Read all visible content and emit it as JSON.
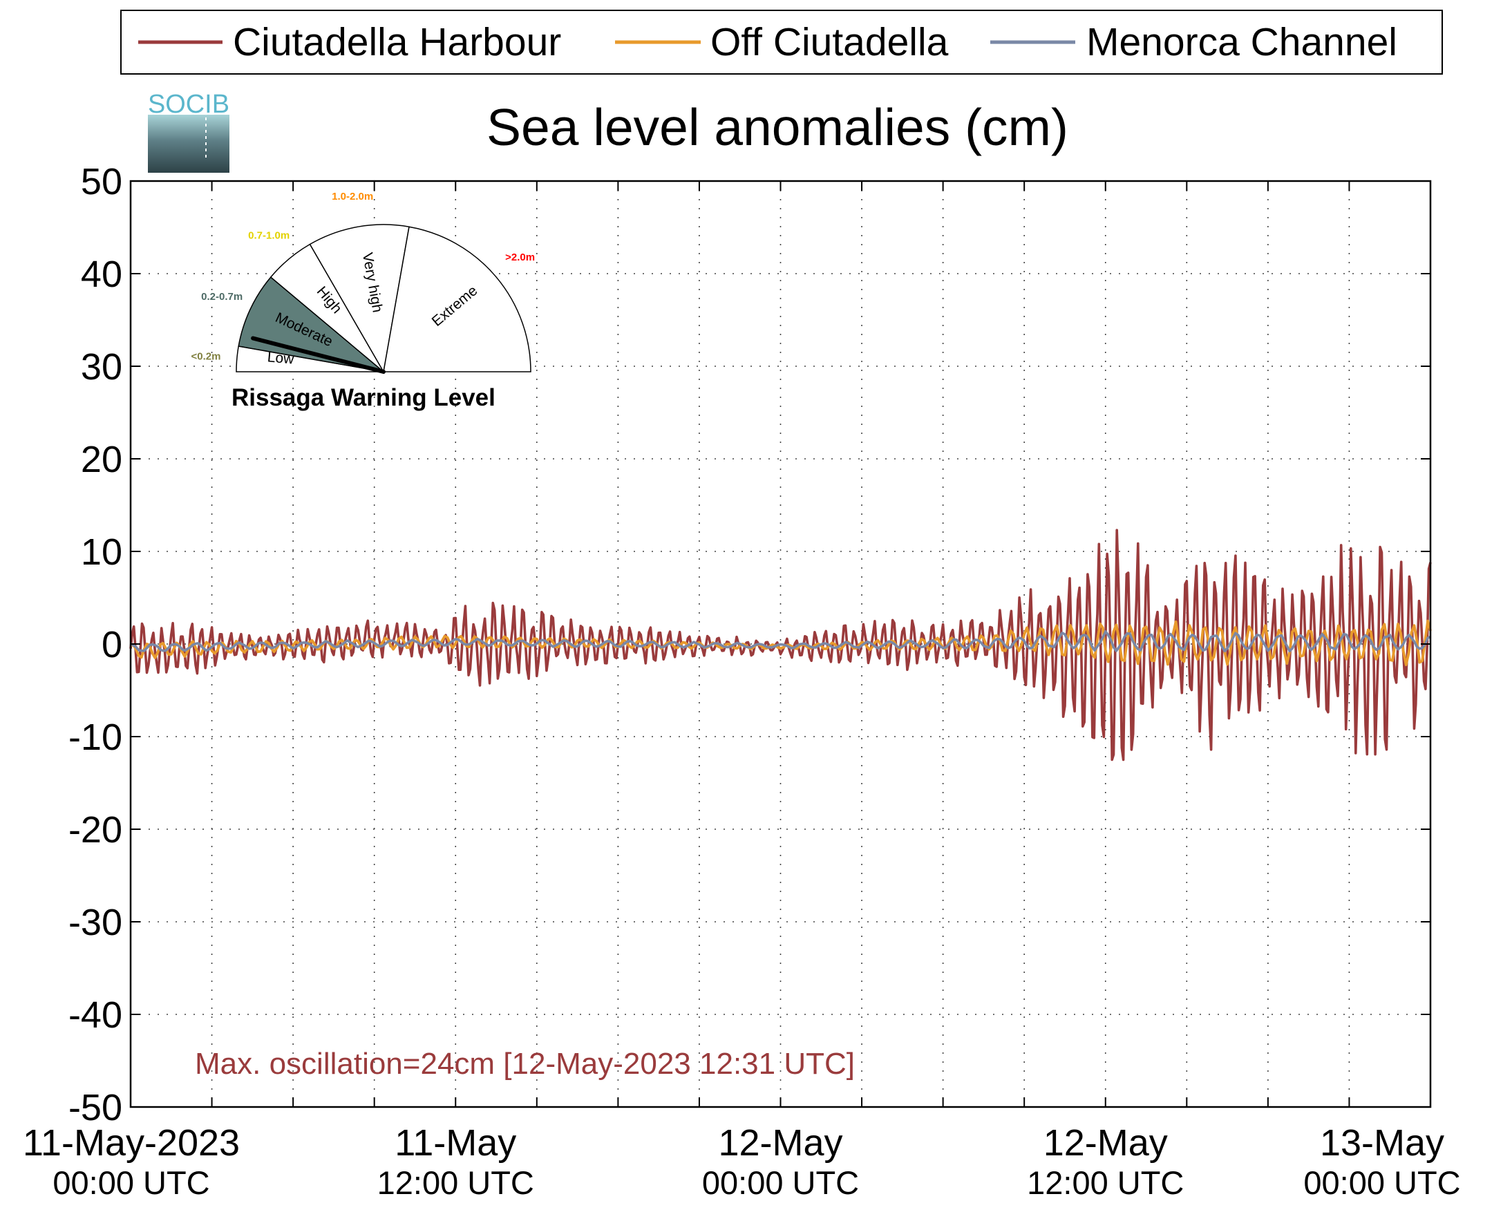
{
  "chart_data": {
    "type": "line",
    "title": "Sea level anomalies (cm)",
    "xlabel": "",
    "ylabel": "",
    "ylim": [
      -50,
      50
    ],
    "yticks": [
      50,
      40,
      30,
      20,
      10,
      0,
      -10,
      -20,
      -30,
      -40,
      -50
    ],
    "xlim_hours": [
      0,
      48
    ],
    "xticks": [
      {
        "hours": 0,
        "line1": "11-May-2023",
        "line2": "00:00 UTC"
      },
      {
        "hours": 12,
        "line1": "11-May",
        "line2": "12:00 UTC"
      },
      {
        "hours": 24,
        "line1": "12-May",
        "line2": "00:00 UTC"
      },
      {
        "hours": 36,
        "line1": "12-May",
        "line2": "12:00 UTC"
      },
      {
        "hours": 48,
        "line1": "13-May",
        "line2": "00:00 UTC"
      }
    ],
    "grid": true,
    "legend_position": "top",
    "series": [
      {
        "name": "Ciutadella Harbour",
        "color": "#9a3b3c",
        "hours": [
          0,
          1,
          2,
          3,
          4,
          5,
          6,
          7,
          8,
          9,
          10,
          11,
          11.5,
          12,
          13,
          14,
          15,
          16,
          17,
          18,
          19,
          20,
          21,
          22,
          23,
          24,
          25,
          26,
          27,
          28,
          29,
          30,
          31,
          32,
          33,
          34,
          34.5,
          35,
          35.5,
          36,
          36.3,
          36.5,
          37,
          37.5,
          38,
          38.5,
          39,
          39.5,
          40,
          40.5,
          41,
          41.5,
          42,
          42.5,
          43,
          43.5,
          44,
          44.5,
          45,
          45.5,
          46,
          46.5,
          47,
          47.5,
          48
        ],
        "amplitude_cm": [
          2.5,
          2,
          2.5,
          2,
          1.2,
          1,
          1.2,
          1.5,
          1.5,
          1.6,
          1.5,
          1.2,
          1.5,
          3.2,
          3.5,
          3.2,
          3,
          2.2,
          1.8,
          1.8,
          1.5,
          1.2,
          0.9,
          0.8,
          0.8,
          0.6,
          1.2,
          1.5,
          1.8,
          2,
          2.2,
          2.2,
          1.8,
          2.5,
          4,
          5.5,
          6.5,
          7,
          7.5,
          9,
          12,
          11,
          9,
          7,
          5,
          4,
          6,
          7.5,
          9,
          8,
          7,
          6,
          5.5,
          5,
          5,
          6,
          7.5,
          8.5,
          9,
          10,
          10,
          9,
          8,
          7.5,
          7
        ],
        "offset_cm": [
          -0.5,
          -0.8,
          -0.5,
          -0.3,
          -0.3,
          -0.2,
          -0.1,
          0,
          0.3,
          0.5,
          0.5,
          0.2,
          0,
          -0.2,
          0,
          0.1,
          0,
          0,
          0,
          0,
          -0.1,
          -0.2,
          -0.2,
          -0.2,
          -0.3,
          -0.4,
          -0.3,
          -0.2,
          0,
          0,
          0,
          0,
          0.2,
          0.5,
          0.5,
          0.5,
          0.3,
          0,
          0,
          0,
          0,
          0,
          0,
          0,
          0,
          0,
          0,
          0,
          0,
          0,
          0,
          0,
          0,
          0,
          0,
          0,
          0,
          0,
          0,
          0,
          0,
          0,
          0,
          0,
          0
        ],
        "max_cm": 12.3,
        "min_cm": -12.5
      },
      {
        "name": "Off Ciutadella",
        "color": "#e89a2c",
        "hours": [
          0,
          6,
          12,
          18,
          24,
          30,
          32,
          34,
          36,
          38,
          40,
          42,
          44,
          46,
          48
        ],
        "amplitude_cm": [
          0.8,
          0.5,
          0.6,
          0.4,
          0.2,
          0.6,
          0.9,
          1.5,
          2,
          2.2,
          2,
          1.8,
          1.8,
          2,
          2.5
        ],
        "offset_cm": [
          -0.7,
          -0.2,
          0.3,
          0,
          -0.3,
          0,
          0.2,
          0.5,
          0.2,
          0,
          0,
          0,
          0,
          0,
          0
        ]
      },
      {
        "name": "Menorca Channel",
        "color": "#7a88a6",
        "hours": [
          0,
          6,
          12,
          18,
          24,
          30,
          32,
          34,
          36,
          38,
          40,
          42,
          44,
          46,
          48
        ],
        "amplitude_cm": [
          0.4,
          0.3,
          0.3,
          0.3,
          0.2,
          0.4,
          0.5,
          0.7,
          0.9,
          0.9,
          0.8,
          0.8,
          0.8,
          0.8,
          0.8
        ],
        "offset_cm": [
          -0.4,
          -0.1,
          0.2,
          0,
          -0.2,
          0,
          0.1,
          0.3,
          0.3,
          0.2,
          0.2,
          0.2,
          0.2,
          0.2,
          0.1
        ]
      }
    ],
    "annotation": "Max. oscillation=24cm [12-May-2023 12:31 UTC]",
    "annotation_color": "#9a3b3c"
  },
  "logo": {
    "text": "SOCIB"
  },
  "gauge": {
    "title": "Rissaga Warning Level",
    "needle_level": "Low",
    "needle_fraction": 0.08,
    "sectors": [
      {
        "label": "Low",
        "range": "<0.2m",
        "range_color": "#808040",
        "fill": "#ffffff"
      },
      {
        "label": "Moderate",
        "range": "0.2-0.7m",
        "range_color": "#4e6b66",
        "fill": "#5f7e7a"
      },
      {
        "label": "High",
        "range": "0.7-1.0m",
        "range_color": "#e3d200",
        "fill": "#ffffff"
      },
      {
        "label": "Very high",
        "range": "1.0-2.0m",
        "range_color": "#ff8c00",
        "fill": "#ffffff"
      },
      {
        "label": "Extreme",
        "range": ">2.0m",
        "range_color": "#ff0000",
        "fill": "#ffffff"
      }
    ]
  }
}
